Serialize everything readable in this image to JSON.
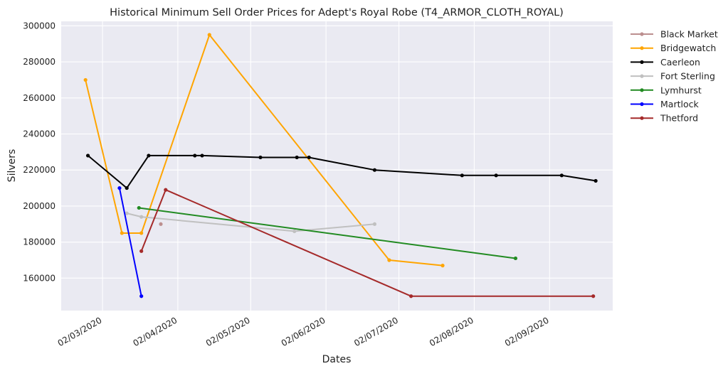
{
  "chart_data": {
    "type": "line",
    "title": "Historical Minimum Sell Order Prices for Adept's Royal Robe (T4_ARMOR_CLOTH_ROYAL)",
    "xlabel": "Dates",
    "ylabel": "Silvers",
    "x_axis_type": "date",
    "xlim": [
      "2020-02-14",
      "2020-09-28"
    ],
    "ylim": [
      142000,
      302500
    ],
    "x_ticks": [
      {
        "date": "2020-03-02",
        "label": "02/03/2020"
      },
      {
        "date": "2020-04-02",
        "label": "02/04/2020"
      },
      {
        "date": "2020-05-02",
        "label": "02/05/2020"
      },
      {
        "date": "2020-06-02",
        "label": "02/06/2020"
      },
      {
        "date": "2020-07-02",
        "label": "02/07/2020"
      },
      {
        "date": "2020-08-02",
        "label": "02/08/2020"
      },
      {
        "date": "2020-09-02",
        "label": "02/09/2020"
      }
    ],
    "y_ticks": [
      160000,
      180000,
      200000,
      220000,
      240000,
      260000,
      280000,
      300000
    ],
    "grid": true,
    "legend_position": "outside-right",
    "series": [
      {
        "name": "Black Market",
        "color": "#bc8f8f",
        "points": [
          [
            "2020-03-26",
            190000
          ]
        ]
      },
      {
        "name": "Bridgewatch",
        "color": "#ffa500",
        "points": [
          [
            "2020-02-24",
            270000
          ],
          [
            "2020-03-10",
            185000
          ],
          [
            "2020-03-18",
            185000
          ],
          [
            "2020-04-15",
            295000
          ],
          [
            "2020-06-28",
            170000
          ],
          [
            "2020-07-20",
            167000
          ]
        ]
      },
      {
        "name": "Caerleon",
        "color": "#000000",
        "points": [
          [
            "2020-02-25",
            228000
          ],
          [
            "2020-03-12",
            210000
          ],
          [
            "2020-03-21",
            228000
          ],
          [
            "2020-04-09",
            228000
          ],
          [
            "2020-04-12",
            228000
          ],
          [
            "2020-05-06",
            227000
          ],
          [
            "2020-05-21",
            227000
          ],
          [
            "2020-05-26",
            227000
          ],
          [
            "2020-06-22",
            220000
          ],
          [
            "2020-07-28",
            217000
          ],
          [
            "2020-08-11",
            217000
          ],
          [
            "2020-09-07",
            217000
          ],
          [
            "2020-09-21",
            214000
          ]
        ]
      },
      {
        "name": "Fort Sterling",
        "color": "#c0c0c0",
        "points": [
          [
            "2020-03-12",
            196000
          ],
          [
            "2020-03-18",
            194000
          ],
          [
            "2020-05-20",
            186000
          ],
          [
            "2020-06-22",
            190000
          ]
        ]
      },
      {
        "name": "Lymhurst",
        "color": "#228b22",
        "points": [
          [
            "2020-03-17",
            199000
          ],
          [
            "2020-08-19",
            171000
          ]
        ]
      },
      {
        "name": "Martlock",
        "color": "#0000ff",
        "points": [
          [
            "2020-03-09",
            210000
          ],
          [
            "2020-03-18",
            150000
          ]
        ]
      },
      {
        "name": "Thetford",
        "color": "#a52a2a",
        "points": [
          [
            "2020-03-18",
            175000
          ],
          [
            "2020-03-28",
            209000
          ],
          [
            "2020-07-07",
            150000
          ],
          [
            "2020-09-20",
            150000
          ]
        ]
      }
    ]
  }
}
